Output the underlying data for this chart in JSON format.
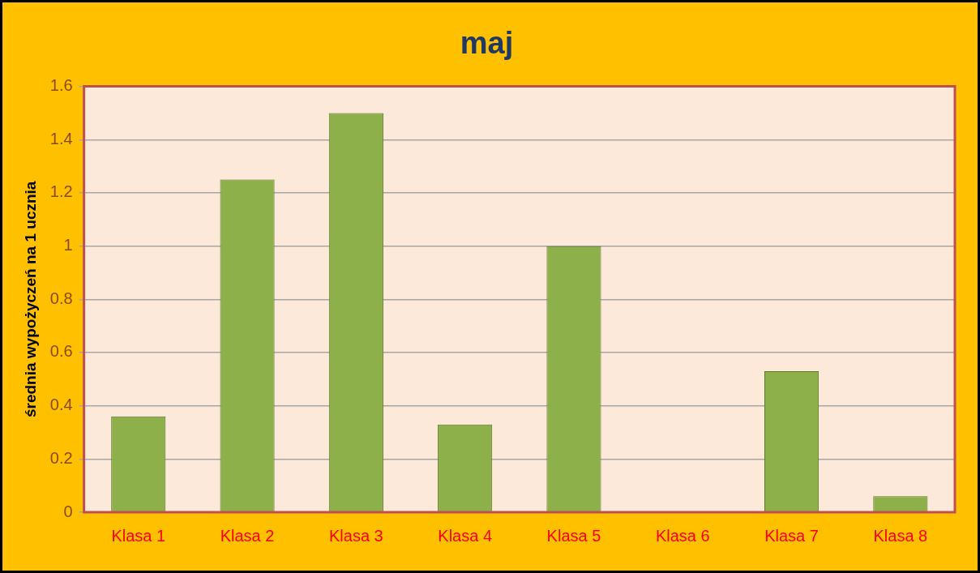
{
  "chart_data": {
    "type": "bar",
    "title": "maj",
    "ylabel": "średnia wypożyczeń na 1 ucznia",
    "categories": [
      "Klasa 1",
      "Klasa 2",
      "Klasa 3",
      "Klasa 4",
      "Klasa 5",
      "Klasa 6",
      "Klasa 7",
      "Klasa 8"
    ],
    "values": [
      0.36,
      1.25,
      1.5,
      0.33,
      1.0,
      0,
      0.53,
      0.06
    ],
    "color": "#8db04a",
    "ylim": [
      0,
      1.6
    ],
    "yticks": [
      0,
      0.2,
      0.4,
      0.6,
      0.8,
      1,
      1.2,
      1.4,
      1.6
    ],
    "grid": "y",
    "legend": false
  }
}
